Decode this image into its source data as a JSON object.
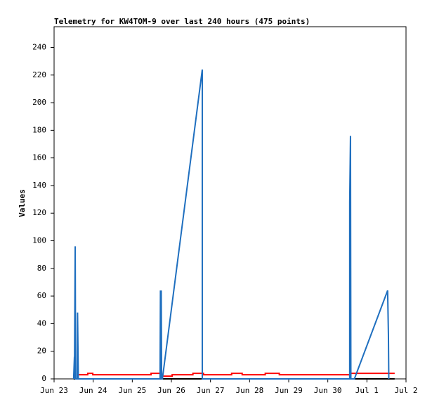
{
  "chart_data": {
    "type": "line",
    "title": "Telemetry for KW4TOM-9 over last 240 hours (475 points)",
    "y_label": "Values",
    "xlim": [
      0,
      9
    ],
    "xticks": [
      {
        "value": 0,
        "label": "Jun 23"
      },
      {
        "value": 1,
        "label": "Jun 24"
      },
      {
        "value": 2,
        "label": "Jun 25"
      },
      {
        "value": 3,
        "label": "Jun 26"
      },
      {
        "value": 4,
        "label": "Jun 27"
      },
      {
        "value": 5,
        "label": "Jun 28"
      },
      {
        "value": 6,
        "label": "Jun 29"
      },
      {
        "value": 7,
        "label": "Jun 30"
      },
      {
        "value": 8,
        "label": "Jul 1"
      },
      {
        "value": 9,
        "label": "Jul 2"
      }
    ],
    "ylim": [
      0,
      255
    ],
    "yticks": [
      0,
      20,
      40,
      60,
      80,
      100,
      120,
      140,
      160,
      180,
      200,
      220,
      240
    ],
    "series": [
      {
        "color": "#000000",
        "x": [
          0.5,
          8.71
        ],
        "values": [
          0,
          0
        ]
      },
      {
        "color": "#ff0000",
        "x": [
          0.59,
          0.86,
          0.86,
          0.99,
          0.99,
          2.48,
          2.48,
          2.75,
          2.75,
          3.02,
          3.02,
          3.55,
          3.55,
          3.82,
          3.82,
          4.54,
          4.54,
          4.81,
          4.81,
          5.4,
          5.4,
          5.76,
          5.76,
          7.59,
          7.59,
          8.71
        ],
        "values": [
          3,
          3,
          4,
          4,
          3,
          3,
          4,
          4,
          2,
          2,
          3,
          3,
          4,
          4,
          3,
          3,
          4,
          4,
          3,
          3,
          4,
          4,
          3,
          3,
          4,
          4
        ]
      },
      {
        "color": "#1f6fbf",
        "x": [
          0.5,
          0.52,
          0.52,
          0.54,
          0.55,
          0.59,
          0.6,
          0.62,
          2.71,
          2.72,
          2.73,
          2.74,
          2.75,
          2.77,
          3.79,
          3.79,
          3.81,
          7.56,
          7.56,
          7.58,
          7.59,
          7.68,
          8.53,
          8.55,
          8.56
        ],
        "values": [
          0,
          16,
          0,
          96,
          0,
          0,
          48,
          0,
          0,
          64,
          0,
          64,
          0,
          0,
          224,
          0,
          0,
          0,
          128,
          176,
          0,
          0,
          64,
          32,
          0
        ]
      }
    ]
  }
}
